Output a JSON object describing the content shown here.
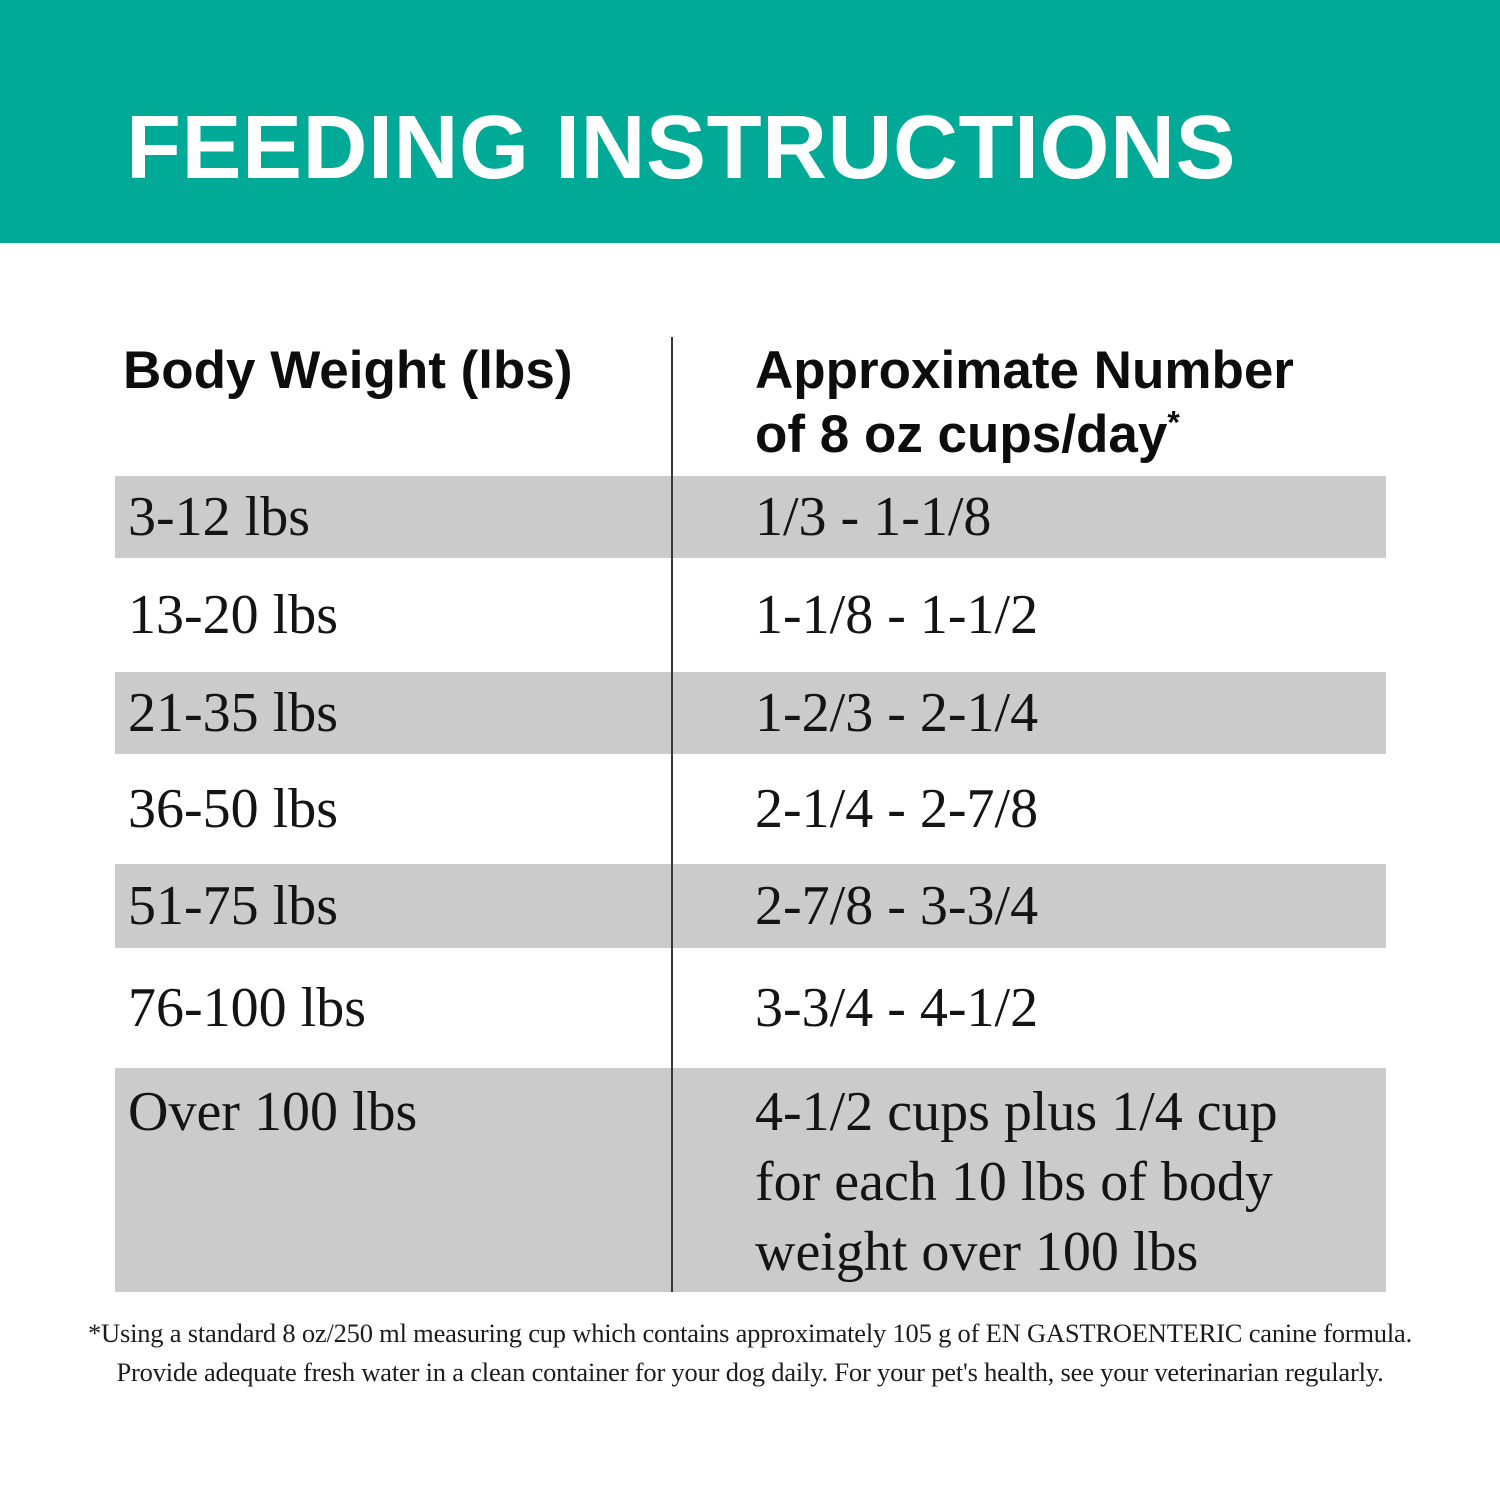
{
  "colors": {
    "banner_teal": "#00aa96",
    "row_shade_gray": "#cbcbcb",
    "divider": "#383838",
    "banner_text": "#ffffff",
    "body_text": "#141414"
  },
  "banner": {
    "title": "FEEDING INSTRUCTIONS"
  },
  "table": {
    "header": {
      "weight": "Body Weight (lbs)",
      "cups_line1": "Approximate Number",
      "cups_line2": "of 8 oz cups/day",
      "cups_footnote_marker": "*"
    },
    "rows": [
      {
        "weight": "3-12 lbs",
        "cups": "1/3 - 1-1/8",
        "shaded": true
      },
      {
        "weight": "13-20 lbs",
        "cups": "1-1/8 - 1-1/2",
        "shaded": false
      },
      {
        "weight": "21-35 lbs",
        "cups": "1-2/3 - 2-1/4",
        "shaded": true
      },
      {
        "weight": "36-50 lbs",
        "cups": "2-1/4 - 2-7/8",
        "shaded": false
      },
      {
        "weight": "51-75 lbs",
        "cups": "2-7/8 - 3-3/4",
        "shaded": true
      },
      {
        "weight": "76-100 lbs",
        "cups": "3-3/4 - 4-1/2",
        "shaded": false
      },
      {
        "weight": "Over 100 lbs",
        "cups_lines": [
          "4-1/2 cups plus 1/4 cup",
          "for each 10 lbs of body",
          "weight over 100 lbs"
        ],
        "shaded": true
      }
    ]
  },
  "footnote": {
    "line1": "*Using a standard 8 oz/250 ml measuring cup which contains approximately 105 g of EN GASTROENTERIC canine formula.",
    "line2": "Provide adequate fresh water in a clean container for your dog daily. For your pet's health, see your veterinarian regularly."
  }
}
